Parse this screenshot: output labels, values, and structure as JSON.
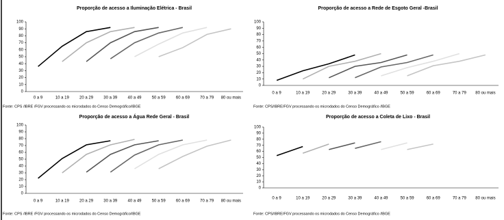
{
  "chart_data": [
    {
      "type": "line",
      "title": "Proporção de acesso a Iluminação Elétrica  - Brasil",
      "source": "Fonte: CPS /IBRE /FGV processando os microdados do Censo Demográfico/IBGE",
      "categories": [
        "0 a 9",
        "10 a 19",
        "20 a 29",
        "30 a 39",
        "40 a 49",
        "50 a 59",
        "60 a 69",
        "70 a 79",
        "80 ou mais"
      ],
      "ylim": [
        0,
        100
      ],
      "yticks": [
        0,
        10,
        20,
        30,
        40,
        50,
        60,
        70,
        80,
        90,
        100
      ],
      "series": [
        {
          "color": "#000000",
          "values": [
            36,
            65,
            86,
            92,
            null,
            null,
            null,
            null,
            null
          ]
        },
        {
          "color": "#b0b0b0",
          "values": [
            null,
            43,
            70,
            86,
            92,
            null,
            null,
            null,
            null
          ]
        },
        {
          "color": "#555555",
          "values": [
            null,
            null,
            43,
            70,
            86,
            92,
            null,
            null,
            null
          ]
        },
        {
          "color": "#666666",
          "values": [
            null,
            null,
            null,
            47,
            70,
            84,
            92,
            null,
            null
          ]
        },
        {
          "color": "#e0e0e0",
          "values": [
            null,
            null,
            null,
            null,
            50,
            68,
            84,
            92,
            null
          ]
        },
        {
          "color": "#c4c4c4",
          "values": [
            null,
            null,
            null,
            null,
            null,
            50,
            63,
            82,
            90
          ]
        }
      ]
    },
    {
      "type": "line",
      "title": "Proporção de acesso a Rede de Esgoto Geral -Brasil",
      "source": "Fonte: CPS/IBRE/FGV processando os microdados do Censo Demográfico /IBGE",
      "categories": [
        "0 a 9",
        "10 a 19",
        "20 a 29",
        "30 a 39",
        "40 a 49",
        "50 a 59",
        "60 a 69",
        "70 a 79",
        "80 ou mais"
      ],
      "ylim": [
        0,
        100
      ],
      "yticks": [
        0,
        10,
        20,
        30,
        40,
        50,
        60,
        70,
        80,
        90,
        100
      ],
      "series": [
        {
          "color": "#000000",
          "values": [
            8,
            23,
            34,
            48,
            null,
            null,
            null,
            null,
            null
          ]
        },
        {
          "color": "#b0b0b0",
          "values": [
            null,
            10,
            30,
            38,
            50,
            null,
            null,
            null,
            null
          ]
        },
        {
          "color": "#555555",
          "values": [
            null,
            null,
            12,
            30,
            36,
            48,
            null,
            null,
            null
          ]
        },
        {
          "color": "#666666",
          "values": [
            null,
            null,
            null,
            12,
            29,
            36,
            48,
            null,
            null
          ]
        },
        {
          "color": "#e0e0e0",
          "values": [
            null,
            null,
            null,
            null,
            15,
            28,
            38,
            50,
            null
          ]
        },
        {
          "color": "#c4c4c4",
          "values": [
            null,
            null,
            null,
            null,
            null,
            15,
            31,
            38,
            48
          ]
        }
      ]
    },
    {
      "type": "line",
      "title": "Proporção de acesso a Água Rede Geral - Brasil",
      "source": "Fonte: CPS /IBRE /FGV processando os microdados do Censo Demográfico/IBGE",
      "categories": [
        "0 a 9",
        "10 a 19",
        "20 a 29",
        "30 a 39",
        "40 a 49",
        "50 a 59",
        "60 a 69",
        "70 a 79",
        "80 ou mais"
      ],
      "ylim": [
        0,
        100
      ],
      "yticks": [
        0,
        10,
        20,
        30,
        40,
        50,
        60,
        70,
        80,
        90,
        100
      ],
      "series": [
        {
          "color": "#000000",
          "values": [
            22,
            51,
            71,
            77,
            null,
            null,
            null,
            null,
            null
          ]
        },
        {
          "color": "#b0b0b0",
          "values": [
            null,
            30,
            57,
            71,
            79,
            null,
            null,
            null,
            null
          ]
        },
        {
          "color": "#555555",
          "values": [
            null,
            null,
            31,
            57,
            71,
            77,
            null,
            null,
            null
          ]
        },
        {
          "color": "#666666",
          "values": [
            null,
            null,
            null,
            31,
            56,
            71,
            78,
            null,
            null
          ]
        },
        {
          "color": "#e0e0e0",
          "values": [
            null,
            null,
            null,
            null,
            36,
            57,
            71,
            78,
            null
          ]
        },
        {
          "color": "#c4c4c4",
          "values": [
            null,
            null,
            null,
            null,
            null,
            36,
            54,
            69,
            78
          ]
        }
      ]
    },
    {
      "type": "line",
      "title": "Proporção de acesso a Coleta de Lixo - Brasil",
      "source": "Fonte: CPS/IBRE/FGV processando os microdados do Censo Demográfico /IBGE",
      "categories": [
        "0 a 9",
        "10 a 19",
        "20 a 29",
        "30 a 39",
        "40 a 49",
        "50 a 59",
        "60 a 69",
        "70 a 79",
        "80 ou mais"
      ],
      "ylim": [
        0,
        100
      ],
      "yticks": [
        0,
        10,
        20,
        30,
        40,
        50,
        60,
        70,
        80,
        90,
        100
      ],
      "series": [
        {
          "color": "#000000",
          "values": [
            53,
            68,
            null,
            null,
            null,
            null,
            null,
            null,
            null
          ]
        },
        {
          "color": "#b0b0b0",
          "values": [
            null,
            57,
            72,
            null,
            null,
            null,
            null,
            null,
            null
          ]
        },
        {
          "color": "#555555",
          "values": [
            null,
            null,
            63,
            74,
            null,
            null,
            null,
            null,
            null
          ]
        },
        {
          "color": "#666666",
          "values": [
            null,
            null,
            null,
            65,
            76,
            null,
            null,
            null,
            null
          ]
        },
        {
          "color": "#e0e0e0",
          "values": [
            null,
            null,
            null,
            null,
            63,
            74,
            null,
            null,
            null
          ]
        },
        {
          "color": "#c4c4c4",
          "values": [
            null,
            null,
            null,
            null,
            null,
            63,
            72,
            null,
            null
          ]
        }
      ]
    }
  ]
}
